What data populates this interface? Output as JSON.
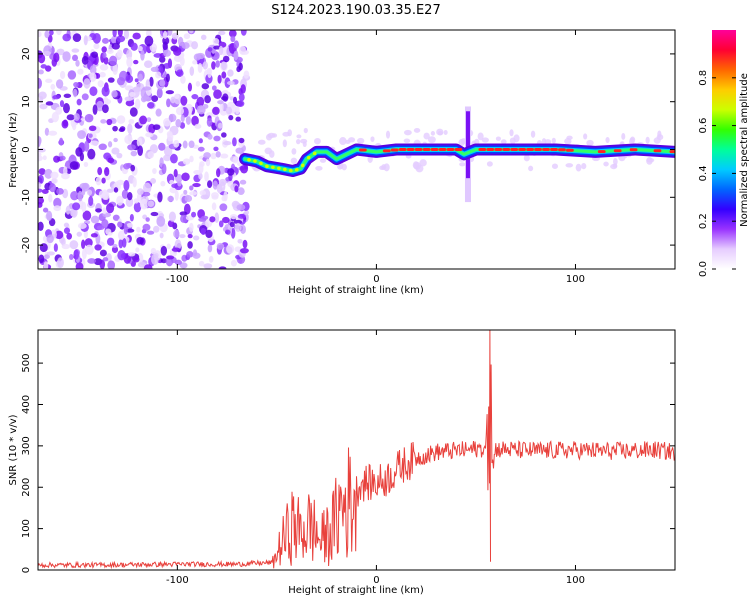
{
  "title": "S124.2023.190.03.35.E27",
  "chart_data": [
    {
      "type": "heatmap",
      "xlabel": "Height of straight line (km)",
      "ylabel": "Frequency (Hz)",
      "xlim": [
        -170,
        150
      ],
      "ylim": [
        -25,
        25
      ],
      "xticks": [
        -100,
        0,
        100
      ],
      "yticks": [
        -20,
        -10,
        0,
        10,
        20
      ],
      "colorbar": {
        "label": "Normalized spectral amplitude",
        "range": [
          0,
          1
        ],
        "ticks": [
          0.0,
          0.2,
          0.4,
          0.6,
          0.8
        ],
        "colors": [
          "#ffffff",
          "#e6ccff",
          "#9933ff",
          "#3300ff",
          "#0066ff",
          "#00ccff",
          "#00ff99",
          "#33ff00",
          "#ccff00",
          "#ffcc00",
          "#ff6600",
          "#ff0033",
          "#ff0099"
        ]
      },
      "signal_track": [
        {
          "x": -66,
          "y": -2.0
        },
        {
          "x": -60,
          "y": -2.5
        },
        {
          "x": -55,
          "y": -3.5
        },
        {
          "x": -48,
          "y": -4.0
        },
        {
          "x": -42,
          "y": -4.5
        },
        {
          "x": -38,
          "y": -4.0
        },
        {
          "x": -35,
          "y": -2.0
        },
        {
          "x": -30,
          "y": -0.5
        },
        {
          "x": -25,
          "y": -0.5
        },
        {
          "x": -20,
          "y": -2.0
        },
        {
          "x": -15,
          "y": -1.0
        },
        {
          "x": -10,
          "y": 0.0
        },
        {
          "x": 0,
          "y": -0.5
        },
        {
          "x": 10,
          "y": 0.0
        },
        {
          "x": 20,
          "y": 0.0
        },
        {
          "x": 30,
          "y": 0.0
        },
        {
          "x": 40,
          "y": 0.0
        },
        {
          "x": 44,
          "y": -1.0
        },
        {
          "x": 50,
          "y": 0.0
        },
        {
          "x": 70,
          "y": 0.0
        },
        {
          "x": 90,
          "y": 0.0
        },
        {
          "x": 110,
          "y": -0.5
        },
        {
          "x": 130,
          "y": 0.0
        },
        {
          "x": 150,
          "y": -0.5
        }
      ],
      "noise_region_x": [
        -170,
        -65
      ],
      "vertical_spike_x": 46
    },
    {
      "type": "line",
      "xlabel": "Height of straight line (km)",
      "ylabel": "SNR (10 * v/v)",
      "xlim": [
        -170,
        150
      ],
      "ylim": [
        0,
        580
      ],
      "xticks": [
        -100,
        0,
        100
      ],
      "yticks": [
        0,
        100,
        200,
        300,
        400,
        500
      ],
      "color": "#e8413c",
      "series_envelope": [
        {
          "x": -170,
          "y": 12
        },
        {
          "x": -140,
          "y": 12
        },
        {
          "x": -100,
          "y": 14
        },
        {
          "x": -70,
          "y": 14
        },
        {
          "x": -52,
          "y": 18
        },
        {
          "x": -48,
          "y": 60
        },
        {
          "x": -42,
          "y": 110
        },
        {
          "x": -38,
          "y": 90
        },
        {
          "x": -33,
          "y": 110
        },
        {
          "x": -28,
          "y": 70
        },
        {
          "x": -22,
          "y": 100
        },
        {
          "x": -18,
          "y": 150
        },
        {
          "x": -12,
          "y": 170
        },
        {
          "x": -8,
          "y": 210
        },
        {
          "x": 0,
          "y": 210
        },
        {
          "x": 5,
          "y": 220
        },
        {
          "x": 12,
          "y": 250
        },
        {
          "x": 20,
          "y": 270
        },
        {
          "x": 30,
          "y": 285
        },
        {
          "x": 45,
          "y": 290
        },
        {
          "x": 55,
          "y": 295
        },
        {
          "x": 62,
          "y": 292
        },
        {
          "x": 80,
          "y": 288
        },
        {
          "x": 100,
          "y": 290
        },
        {
          "x": 120,
          "y": 287
        },
        {
          "x": 140,
          "y": 290
        },
        {
          "x": 150,
          "y": 285
        }
      ],
      "spike": {
        "x": 57,
        "max": 580,
        "min": 20
      }
    }
  ]
}
